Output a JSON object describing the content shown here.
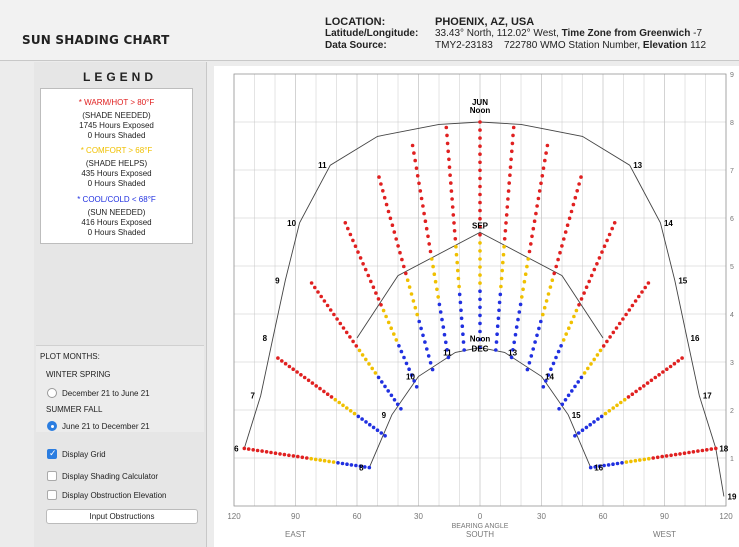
{
  "header": {
    "app_title": "SUN SHADING CHART",
    "location_label": "LOCATION:",
    "location_value": "PHOENIX, AZ, USA",
    "latlon_label": "Latitude/Longitude:",
    "latlon_value": "33.43° North, 112.02° West,",
    "tz_label": "Time Zone from Greenwich",
    "tz_value": "-7",
    "source_label": "Data Source:",
    "source_value": "TMY2-23183",
    "station_value": "722780 WMO Station Number,",
    "elevation_label": "Elevation",
    "elevation_value": "112"
  },
  "legend": {
    "title": "LEGEND",
    "warm_label": "* WARM/HOT > 80°F",
    "warm_need": "(SHADE NEEDED)",
    "warm_exposed": "1745 Hours Exposed",
    "warm_shaded": "0 Hours Shaded",
    "comfort_label": "* COMFORT > 68°F",
    "comfort_need": "(SHADE HELPS)",
    "comfort_exposed": "435 Hours Exposed",
    "comfort_shaded": "0 Hours Shaded",
    "cool_label": "* COOL/COLD < 68°F",
    "cool_need": "(SUN NEEDED)",
    "cool_exposed": "416 Hours Exposed",
    "cool_shaded": "0 Hours Shaded",
    "colors": {
      "warm": "#e02020",
      "comfort": "#f0c000",
      "cool": "#2030e0"
    }
  },
  "plot_months": {
    "title": "PLOT MONTHS:",
    "winter_spring": "WINTER SPRING",
    "option1": "December 21 to June 21",
    "summer_fall": "SUMMER FALL",
    "option2": "June 21 to December 21",
    "selected": "option2"
  },
  "options": {
    "display_grid": "Display Grid",
    "display_grid_checked": true,
    "shading_calc": "Display Shading Calculator",
    "shading_calc_checked": false,
    "obstruction_elev": "Display Obstruction Elevation",
    "obstruction_elev_checked": false,
    "input_obstructions": "Input Obstructions"
  },
  "chart_data": {
    "type": "scatter",
    "title": "",
    "xlabel": "BEARING ANGLE",
    "ylabel": "",
    "x_ticks": [
      "120",
      "90",
      "60",
      "30",
      "0",
      "30",
      "60",
      "90",
      "120"
    ],
    "x_direction_labels": [
      "EAST",
      "SOUTH",
      "WEST"
    ],
    "xlim": [
      -120,
      120
    ],
    "ylim": [
      0,
      90
    ],
    "y_ticks_right": [
      "9",
      "8",
      "7",
      "6",
      "5",
      "4",
      "3",
      "2",
      "1"
    ],
    "grid": true,
    "annotations": {
      "jun": "JUN",
      "noon": "Noon",
      "sep": "SEP",
      "dec": "DEC"
    },
    "series": [
      {
        "name": "JUN",
        "points": [
          {
            "hour": "6",
            "x": -115,
            "y": 12
          },
          {
            "hour": "7",
            "x": -107,
            "y": 23
          },
          {
            "hour": "8",
            "x": -101,
            "y": 35
          },
          {
            "hour": "9",
            "x": -95,
            "y": 47
          },
          {
            "hour": "10",
            "x": -88,
            "y": 59
          },
          {
            "hour": "11",
            "x": -73,
            "y": 71
          },
          {
            "hour": "",
            "x": -50,
            "y": 77
          },
          {
            "hour": "",
            "x": -20,
            "y": 79.5
          },
          {
            "hour": "",
            "x": 0,
            "y": 80
          },
          {
            "hour": "",
            "x": 20,
            "y": 79.5
          },
          {
            "hour": "",
            "x": 50,
            "y": 77
          },
          {
            "hour": "13",
            "x": 73,
            "y": 71
          },
          {
            "hour": "14",
            "x": 88,
            "y": 59
          },
          {
            "hour": "15",
            "x": 95,
            "y": 47
          },
          {
            "hour": "16",
            "x": 101,
            "y": 35
          },
          {
            "hour": "17",
            "x": 107,
            "y": 23
          },
          {
            "hour": "18",
            "x": 115,
            "y": 12
          },
          {
            "hour": "19",
            "x": 119,
            "y": 2
          }
        ]
      },
      {
        "name": "SEP",
        "points": [
          {
            "hour": "",
            "x": -60,
            "y": 35
          },
          {
            "hour": "",
            "x": -40,
            "y": 48
          },
          {
            "hour": "",
            "x": 0,
            "y": 57
          },
          {
            "hour": "",
            "x": 40,
            "y": 48
          },
          {
            "hour": "",
            "x": 60,
            "y": 35
          }
        ]
      },
      {
        "name": "DEC",
        "points": [
          {
            "hour": "8",
            "x": -54,
            "y": 8
          },
          {
            "hour": "9",
            "x": -43,
            "y": 19
          },
          {
            "hour": "10",
            "x": -30,
            "y": 27
          },
          {
            "hour": "11",
            "x": -12,
            "y": 32
          },
          {
            "hour": "",
            "x": 0,
            "y": 33
          },
          {
            "hour": "13",
            "x": 12,
            "y": 32
          },
          {
            "hour": "14",
            "x": 30,
            "y": 27
          },
          {
            "hour": "15",
            "x": 43,
            "y": 19
          },
          {
            "hour": "16",
            "x": 54,
            "y": 8
          }
        ]
      }
    ]
  }
}
